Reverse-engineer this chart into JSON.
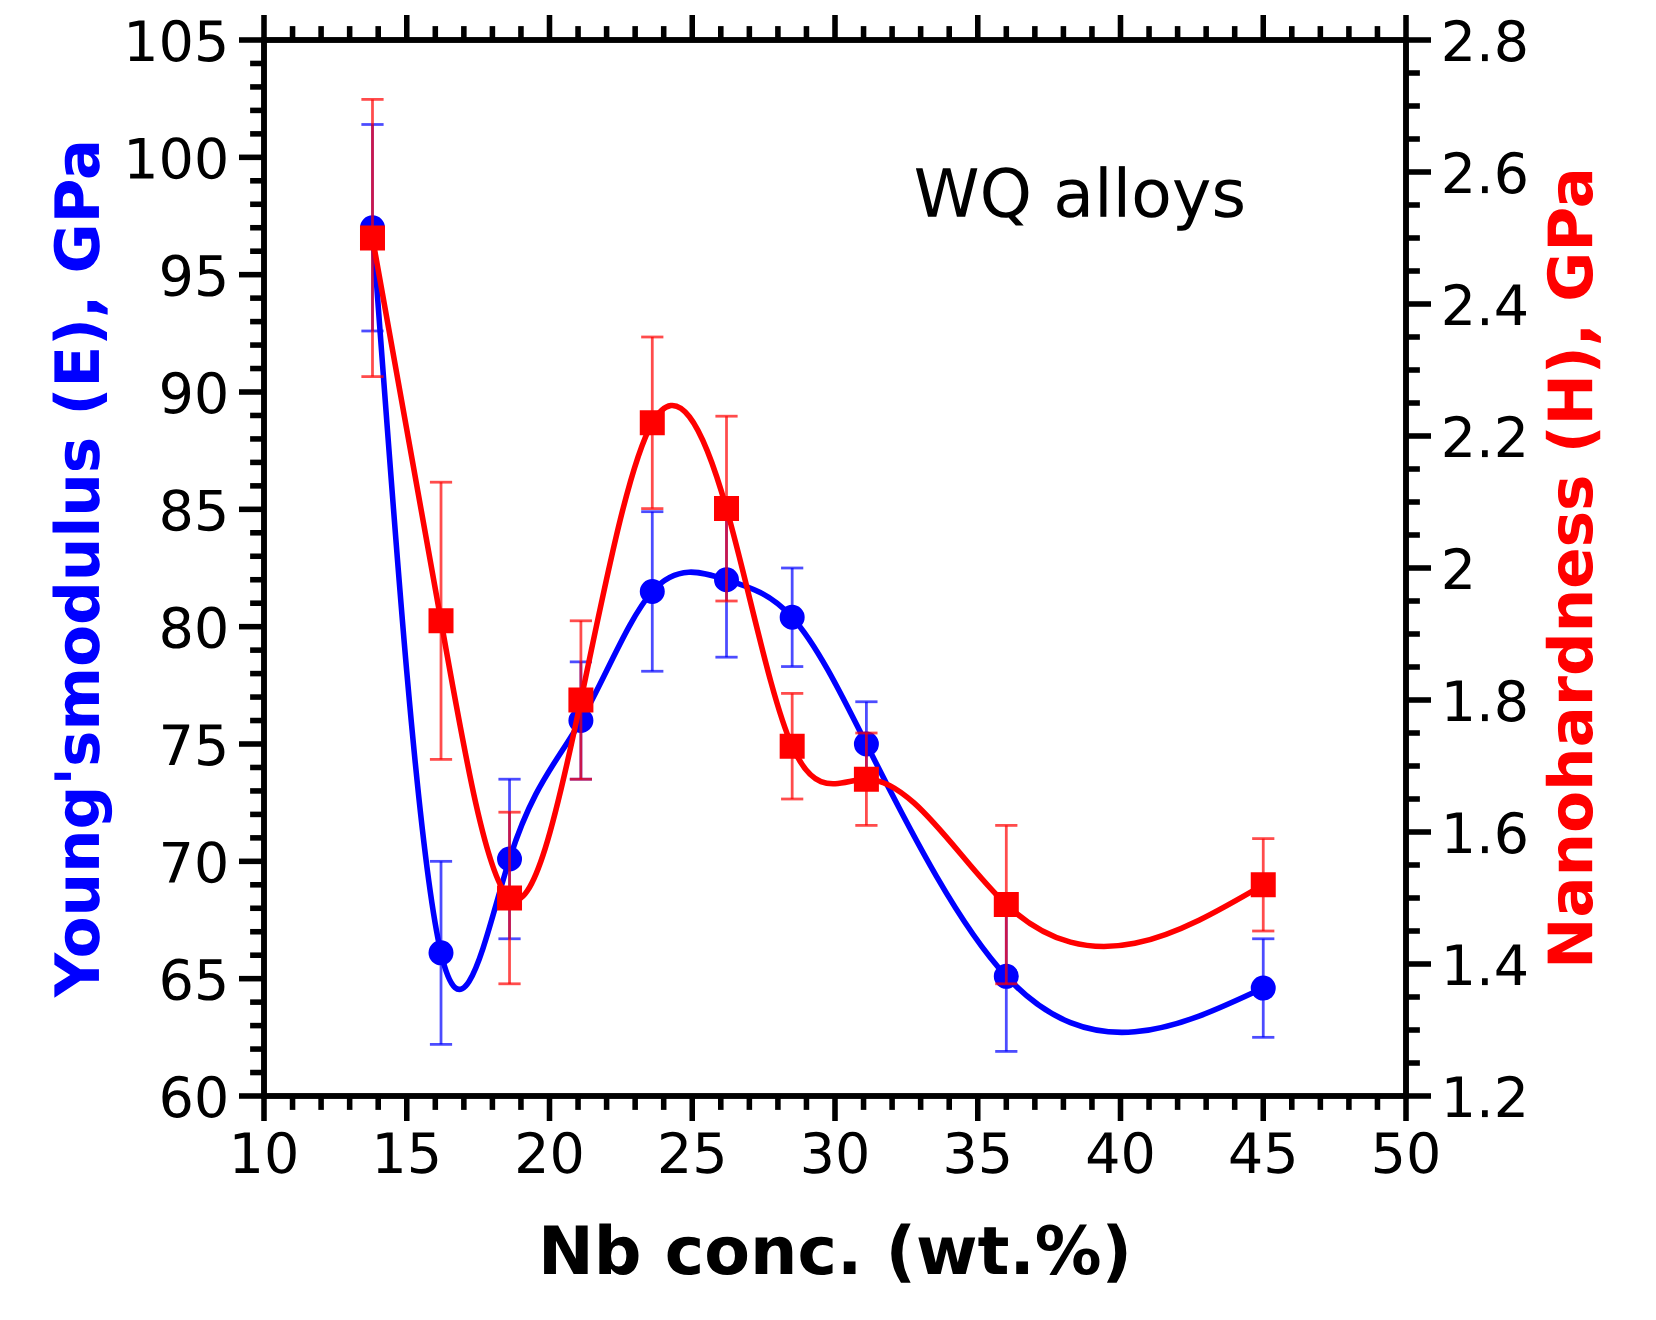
{
  "chart_data": {
    "type": "line",
    "xlabel": "Nb conc. (wt.%)",
    "ylabel": "Young'smodulus (E), GPa",
    "y2label": "Nanohardness (H), GPa",
    "annotations": [
      "WQ alloys"
    ],
    "x": [
      13.8,
      16.2,
      18.6,
      21.1,
      23.6,
      26.2,
      28.5,
      31.1,
      36.0,
      45.0
    ],
    "xlim": [
      10,
      50
    ],
    "xticks": [
      10,
      15,
      20,
      25,
      30,
      35,
      40,
      45,
      50
    ],
    "ylim": [
      60,
      105
    ],
    "yticks": [
      60,
      65,
      70,
      75,
      80,
      85,
      90,
      95,
      100,
      105
    ],
    "y2lim": [
      1.2,
      2.8
    ],
    "y2ticks": [
      {
        "value": 1.2,
        "label": "1.2"
      },
      {
        "value": 1.4,
        "label": "1.4"
      },
      {
        "value": 1.6,
        "label": "1.6"
      },
      {
        "value": 1.8,
        "label": "1.8"
      },
      {
        "value": 2.0,
        "label": "2"
      },
      {
        "value": 2.2,
        "label": "2.2"
      },
      {
        "value": 2.4,
        "label": "2.4"
      },
      {
        "value": 2.6,
        "label": "2.6"
      },
      {
        "value": 2.8,
        "label": "2.8"
      }
    ],
    "grid": false,
    "legend": false,
    "series": [
      {
        "color": "#0000ff",
        "marker": "circle",
        "axis": "y",
        "values": [
          97.0,
          66.1,
          70.1,
          76.0,
          81.5,
          82.0,
          80.4,
          75.0,
          65.1,
          64.6
        ],
        "errors": [
          4.4,
          3.9,
          3.4,
          2.5,
          3.4,
          3.3,
          2.1,
          1.8,
          3.2,
          2.1
        ]
      },
      {
        "color": "#ff0000",
        "marker": "square",
        "axis": "y2",
        "values": [
          2.5,
          1.92,
          1.5,
          1.8,
          2.22,
          2.09,
          1.73,
          1.68,
          1.49,
          1.52
        ],
        "errors": [
          0.21,
          0.21,
          0.13,
          0.12,
          0.13,
          0.14,
          0.08,
          0.07,
          0.12,
          0.07
        ]
      }
    ]
  }
}
